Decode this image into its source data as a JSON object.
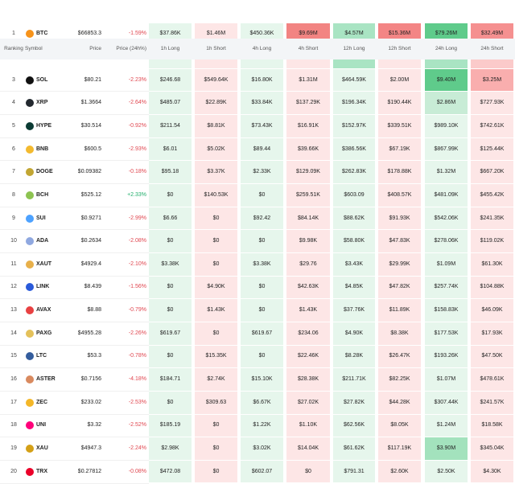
{
  "header": [
    "Ranking",
    "Symbol",
    "Price",
    "Price (24h%)",
    "1h Long",
    "1h Short",
    "4h Long",
    "4h Short",
    "12h Long",
    "12h Short",
    "24h Long",
    "24h Short"
  ],
  "long_color": "#e6f6ec",
  "short_color": "#fde6e6",
  "negative_color": "#e0464f",
  "positive_color": "#1fae6a",
  "rows": [
    {
      "rank": 1,
      "symbol": "BTC",
      "icon": "#f7931a",
      "price": "$66853.3",
      "change": "-1.59%",
      "cells": [
        "$37.86K",
        "$1.46M",
        "$450.36K",
        "$9.69M",
        "$4.57M",
        "$15.36M",
        "$79.26M",
        "$32.49M"
      ]
    },
    {
      "rank": 3,
      "symbol": "SOL",
      "icon": "#111111",
      "price": "$80.21",
      "change": "-2.23%",
      "cells": [
        "$246.68",
        "$549.64K",
        "$16.80K",
        "$1.31M",
        "$464.59K",
        "$2.00M",
        "$9.40M",
        "$3.25M"
      ]
    },
    {
      "rank": 4,
      "symbol": "XRP",
      "icon": "#23292f",
      "price": "$1.3664",
      "change": "-2.64%",
      "cells": [
        "$485.07",
        "$22.89K",
        "$33.84K",
        "$137.29K",
        "$196.34K",
        "$190.44K",
        "$2.86M",
        "$727.93K"
      ]
    },
    {
      "rank": 5,
      "symbol": "HYPE",
      "icon": "#0b3b34",
      "price": "$30.514",
      "change": "-0.92%",
      "cells": [
        "$211.54",
        "$8.81K",
        "$73.43K",
        "$16.91K",
        "$152.97K",
        "$339.51K",
        "$989.10K",
        "$742.61K"
      ]
    },
    {
      "rank": 6,
      "symbol": "BNB",
      "icon": "#f3ba2f",
      "price": "$600.5",
      "change": "-2.93%",
      "cells": [
        "$6.01",
        "$5.02K",
        "$89.44",
        "$39.66K",
        "$386.56K",
        "$67.19K",
        "$867.99K",
        "$125.44K"
      ]
    },
    {
      "rank": 7,
      "symbol": "DOGE",
      "icon": "#c2a633",
      "price": "$0.09382",
      "change": "-0.18%",
      "cells": [
        "$95.18",
        "$3.37K",
        "$2.33K",
        "$129.09K",
        "$262.83K",
        "$178.88K",
        "$1.32M",
        "$667.20K"
      ]
    },
    {
      "rank": 8,
      "symbol": "BCH",
      "icon": "#8dc351",
      "price": "$525.12",
      "change": "+2.33%",
      "cells": [
        "$0",
        "$140.53K",
        "$0",
        "$259.51K",
        "$603.09",
        "$408.57K",
        "$481.09K",
        "$455.42K"
      ]
    },
    {
      "rank": 9,
      "symbol": "SUI",
      "icon": "#4da2ff",
      "price": "$0.9271",
      "change": "-2.99%",
      "cells": [
        "$6.66",
        "$0",
        "$92.42",
        "$84.14K",
        "$88.62K",
        "$91.93K",
        "$542.06K",
        "$241.35K"
      ]
    },
    {
      "rank": 10,
      "symbol": "ADA",
      "icon": "#8fa8e0",
      "price": "$0.2634",
      "change": "-2.08%",
      "cells": [
        "$0",
        "$0",
        "$0",
        "$9.98K",
        "$58.80K",
        "$47.83K",
        "$278.06K",
        "$119.02K"
      ]
    },
    {
      "rank": 11,
      "symbol": "XAUT",
      "icon": "#e8b04a",
      "price": "$4929.4",
      "change": "-2.10%",
      "cells": [
        "$3.38K",
        "$0",
        "$3.38K",
        "$29.76",
        "$3.43K",
        "$29.99K",
        "$1.09M",
        "$61.30K"
      ]
    },
    {
      "rank": 12,
      "symbol": "LINK",
      "icon": "#2a5ada",
      "price": "$8.439",
      "change": "-1.56%",
      "cells": [
        "$0",
        "$4.90K",
        "$0",
        "$42.63K",
        "$4.85K",
        "$47.82K",
        "$257.74K",
        "$104.88K"
      ]
    },
    {
      "rank": 13,
      "symbol": "AVAX",
      "icon": "#e84142",
      "price": "$8.88",
      "change": "-0.79%",
      "cells": [
        "$0",
        "$1.43K",
        "$0",
        "$1.43K",
        "$37.76K",
        "$11.89K",
        "$158.83K",
        "$46.09K"
      ]
    },
    {
      "rank": 14,
      "symbol": "PAXG",
      "icon": "#e4c15a",
      "price": "$4955.28",
      "change": "-2.26%",
      "cells": [
        "$619.67",
        "$0",
        "$619.67",
        "$234.06",
        "$4.90K",
        "$8.38K",
        "$177.53K",
        "$17.93K"
      ]
    },
    {
      "rank": 15,
      "symbol": "LTC",
      "icon": "#345d9d",
      "price": "$53.3",
      "change": "-0.78%",
      "cells": [
        "$0",
        "$15.35K",
        "$0",
        "$22.46K",
        "$8.28K",
        "$26.47K",
        "$193.26K",
        "$47.50K"
      ]
    },
    {
      "rank": 16,
      "symbol": "ASTER",
      "icon": "#d98a5f",
      "price": "$0.7156",
      "change": "-4.18%",
      "cells": [
        "$184.71",
        "$2.74K",
        "$15.10K",
        "$28.38K",
        "$211.71K",
        "$82.25K",
        "$1.07M",
        "$478.61K"
      ]
    },
    {
      "rank": 17,
      "symbol": "ZEC",
      "icon": "#f4b728",
      "price": "$233.02",
      "change": "-2.53%",
      "cells": [
        "$0",
        "$309.63",
        "$6.67K",
        "$27.02K",
        "$27.82K",
        "$44.28K",
        "$307.44K",
        "$241.57K"
      ]
    },
    {
      "rank": 18,
      "symbol": "UNI",
      "icon": "#ff007a",
      "price": "$3.32",
      "change": "-2.52%",
      "cells": [
        "$185.19",
        "$0",
        "$1.22K",
        "$1.10K",
        "$62.56K",
        "$8.05K",
        "$1.24M",
        "$18.58K"
      ]
    },
    {
      "rank": 19,
      "symbol": "XAU",
      "icon": "#d4a017",
      "price": "$4947.3",
      "change": "-2.24%",
      "cells": [
        "$2.98K",
        "$0",
        "$3.02K",
        "$14.04K",
        "$61.62K",
        "$117.19K",
        "$3.90M",
        "$345.04K"
      ]
    },
    {
      "rank": 20,
      "symbol": "TRX",
      "icon": "#eb0029",
      "price": "$0.27812",
      "change": "-0.08%",
      "cells": [
        "$472.08",
        "$0",
        "$602.07",
        "$0",
        "$791.31",
        "$2.60K",
        "$2.50K",
        "$4.30K"
      ]
    }
  ],
  "highlights": [
    {
      "row": 0,
      "col": 3,
      "color": "#f28482"
    },
    {
      "row": 0,
      "col": 4,
      "color": "#a9e4c3"
    },
    {
      "row": 0,
      "col": 5,
      "color": "#f38585"
    },
    {
      "row": 0,
      "col": 6,
      "color": "#5fcb8b"
    },
    {
      "row": 0,
      "col": 7,
      "color": "#f59090"
    },
    {
      "row": 1,
      "col": 6,
      "color": "#5fcb8b"
    },
    {
      "row": 1,
      "col": 7,
      "color": "#f9aeae"
    },
    {
      "row": 2,
      "col": 6,
      "color": "#c8ecd6"
    },
    {
      "row": 17,
      "col": 6,
      "color": "#a3e2bd"
    }
  ]
}
